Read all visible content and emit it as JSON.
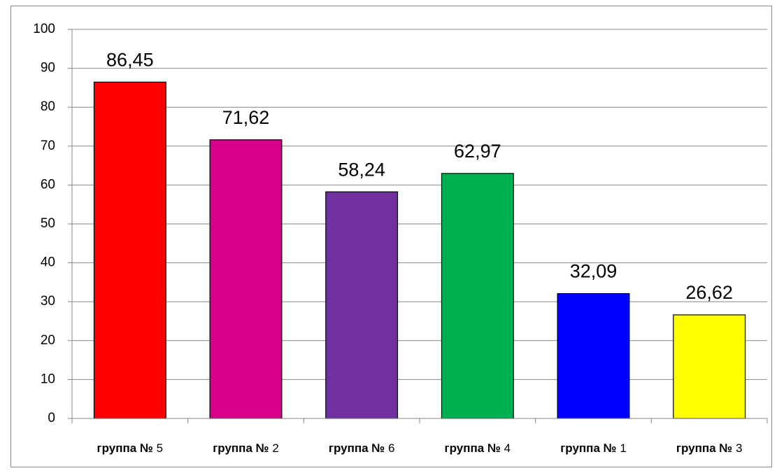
{
  "chart_data": {
    "type": "bar",
    "categories": [
      "группа № 5",
      "группа № 2",
      "группа № 6",
      "группа № 4",
      "группа № 1",
      "группа № 3"
    ],
    "values": [
      86.45,
      71.62,
      58.24,
      62.97,
      32.09,
      26.62
    ],
    "value_labels": [
      "86,45",
      "71,62",
      "58,24",
      "62,97",
      "32,09",
      "26,62"
    ],
    "colors": [
      "#ff0000",
      "#d6008b",
      "#7030a0",
      "#00b050",
      "#0000ff",
      "#ffff00"
    ],
    "ylim": [
      0,
      100
    ],
    "yticks": [
      0,
      10,
      20,
      30,
      40,
      50,
      60,
      70,
      80,
      90,
      100
    ],
    "grid": true
  }
}
